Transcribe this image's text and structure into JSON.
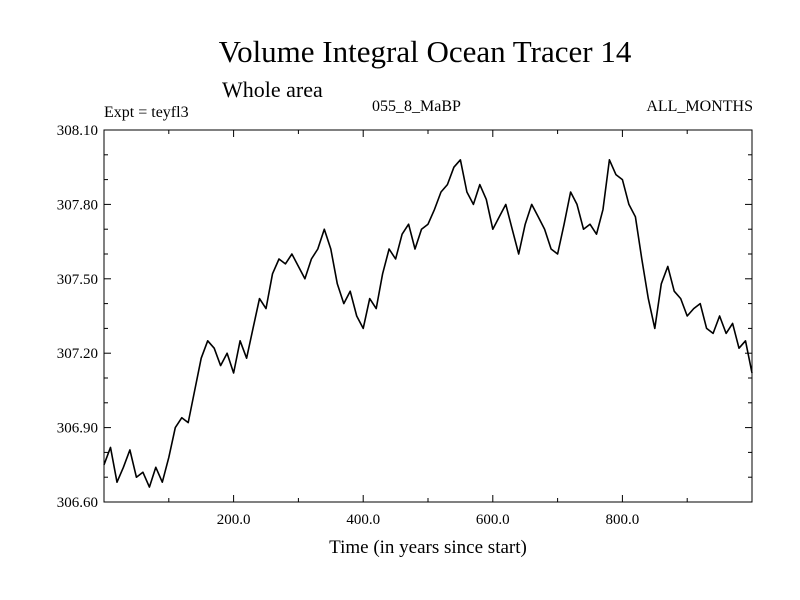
{
  "header": {
    "title": "Volume Integral Ocean Tracer 14",
    "subtitle": "Whole area",
    "experiment": "Expt = teyfl3",
    "period": "055_8_MaBP",
    "months": "ALL_MONTHS"
  },
  "chart_data": {
    "type": "line",
    "title": "Volume Integral Ocean Tracer 14",
    "xlabel": "Time (in years since start)",
    "ylabel": "",
    "xlim": [
      0,
      1000
    ],
    "ylim": [
      306.6,
      308.1
    ],
    "x_ticks": [
      200,
      400,
      600,
      800
    ],
    "x_tick_labels": [
      "200.0",
      "400.0",
      "600.0",
      "800.0"
    ],
    "y_ticks": [
      306.6,
      306.9,
      307.2,
      307.5,
      307.8,
      308.1
    ],
    "y_tick_labels": [
      "306.60",
      "306.90",
      "307.20",
      "307.50",
      "307.80",
      "308.10"
    ],
    "grid": false,
    "series": [
      {
        "name": "Tracer 14",
        "x": [
          0,
          10,
          20,
          30,
          40,
          50,
          60,
          70,
          80,
          90,
          100,
          110,
          120,
          130,
          140,
          150,
          160,
          170,
          180,
          190,
          200,
          210,
          220,
          230,
          240,
          250,
          260,
          270,
          280,
          290,
          300,
          310,
          320,
          330,
          340,
          350,
          360,
          370,
          380,
          390,
          400,
          410,
          420,
          430,
          440,
          450,
          460,
          470,
          480,
          490,
          500,
          510,
          520,
          530,
          540,
          550,
          560,
          570,
          580,
          590,
          600,
          610,
          620,
          630,
          640,
          650,
          660,
          670,
          680,
          690,
          700,
          710,
          720,
          730,
          740,
          750,
          760,
          770,
          780,
          790,
          800,
          810,
          820,
          830,
          840,
          850,
          860,
          870,
          880,
          890,
          900,
          910,
          920,
          930,
          940,
          950,
          960,
          970,
          980,
          990,
          1000
        ],
        "values": [
          306.75,
          306.82,
          306.68,
          306.74,
          306.81,
          306.7,
          306.72,
          306.66,
          306.74,
          306.68,
          306.78,
          306.9,
          306.94,
          306.92,
          307.05,
          307.18,
          307.25,
          307.22,
          307.15,
          307.2,
          307.12,
          307.25,
          307.18,
          307.3,
          307.42,
          307.38,
          307.52,
          307.58,
          307.56,
          307.6,
          307.55,
          307.5,
          307.58,
          307.62,
          307.7,
          307.62,
          307.48,
          307.4,
          307.45,
          307.35,
          307.3,
          307.42,
          307.38,
          307.52,
          307.62,
          307.58,
          307.68,
          307.72,
          307.62,
          307.7,
          307.72,
          307.78,
          307.85,
          307.88,
          307.95,
          307.98,
          307.85,
          307.8,
          307.88,
          307.82,
          307.7,
          307.75,
          307.8,
          307.7,
          307.6,
          307.72,
          307.8,
          307.75,
          307.7,
          307.62,
          307.6,
          307.72,
          307.85,
          307.8,
          307.7,
          307.72,
          307.68,
          307.78,
          307.98,
          307.92,
          307.9,
          307.8,
          307.75,
          307.58,
          307.42,
          307.3,
          307.48,
          307.55,
          307.45,
          307.42,
          307.35,
          307.38,
          307.4,
          307.3,
          307.28,
          307.35,
          307.28,
          307.32,
          307.22,
          307.25,
          307.12
        ]
      }
    ]
  }
}
